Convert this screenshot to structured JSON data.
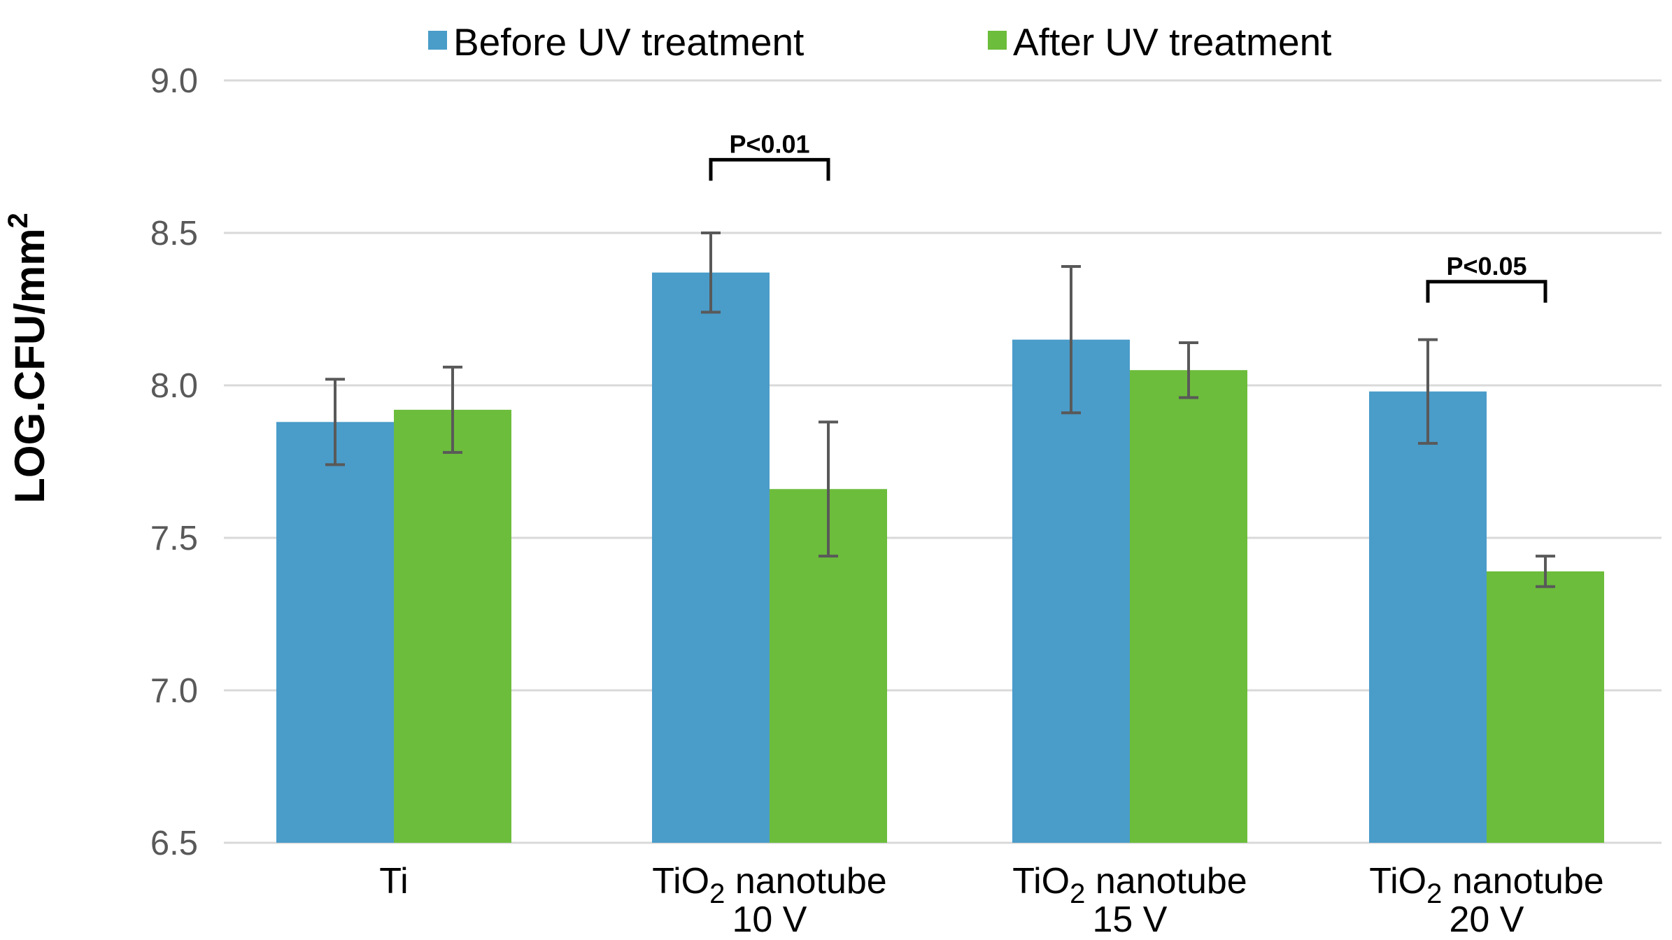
{
  "chart_data": {
    "type": "bar",
    "title": "",
    "xlabel": "",
    "ylabel": "LOG.CFU/mm",
    "ylabel_superscript": "2",
    "ylim": [
      6.5,
      9.0
    ],
    "yticks": [
      6.5,
      7.0,
      7.5,
      8.0,
      8.5,
      9.0
    ],
    "ytick_labels": [
      "6.5",
      "7.0",
      "7.5",
      "8.0",
      "8.5",
      "9.0"
    ],
    "grid": true,
    "legend_position": "top-center",
    "categories": [
      {
        "id": "ti",
        "line1": "Ti",
        "line1_sub": "",
        "line1_rest": "",
        "line2": ""
      },
      {
        "id": "tio2-10v",
        "line1": "TiO",
        "line1_sub": "2",
        "line1_rest": " nanotube",
        "line2": "10 V"
      },
      {
        "id": "tio2-15v",
        "line1": "TiO",
        "line1_sub": "2",
        "line1_rest": " nanotube",
        "line2": "15 V"
      },
      {
        "id": "tio2-20v",
        "line1": "TiO",
        "line1_sub": "2",
        "line1_rest": " nanotube",
        "line2": "20 V"
      }
    ],
    "series": [
      {
        "name": "Before UV treatment",
        "color": "#4a9cc9",
        "values": [
          7.88,
          8.37,
          8.15,
          7.98
        ],
        "errors": [
          0.14,
          0.13,
          0.24,
          0.17
        ]
      },
      {
        "name": "After UV treatment",
        "color": "#6cbd3b",
        "values": [
          7.92,
          7.66,
          8.05,
          7.39
        ],
        "errors": [
          0.14,
          0.22,
          0.09,
          0.05
        ]
      }
    ],
    "annotations": [
      {
        "category_index": 1,
        "text": "P<0.01",
        "y": 8.74
      },
      {
        "category_index": 3,
        "text": "P<0.05",
        "y": 8.34
      }
    ],
    "colors": {
      "grid": "#d9d9d9",
      "error_bar": "#595959",
      "tick_text": "#595959"
    }
  }
}
